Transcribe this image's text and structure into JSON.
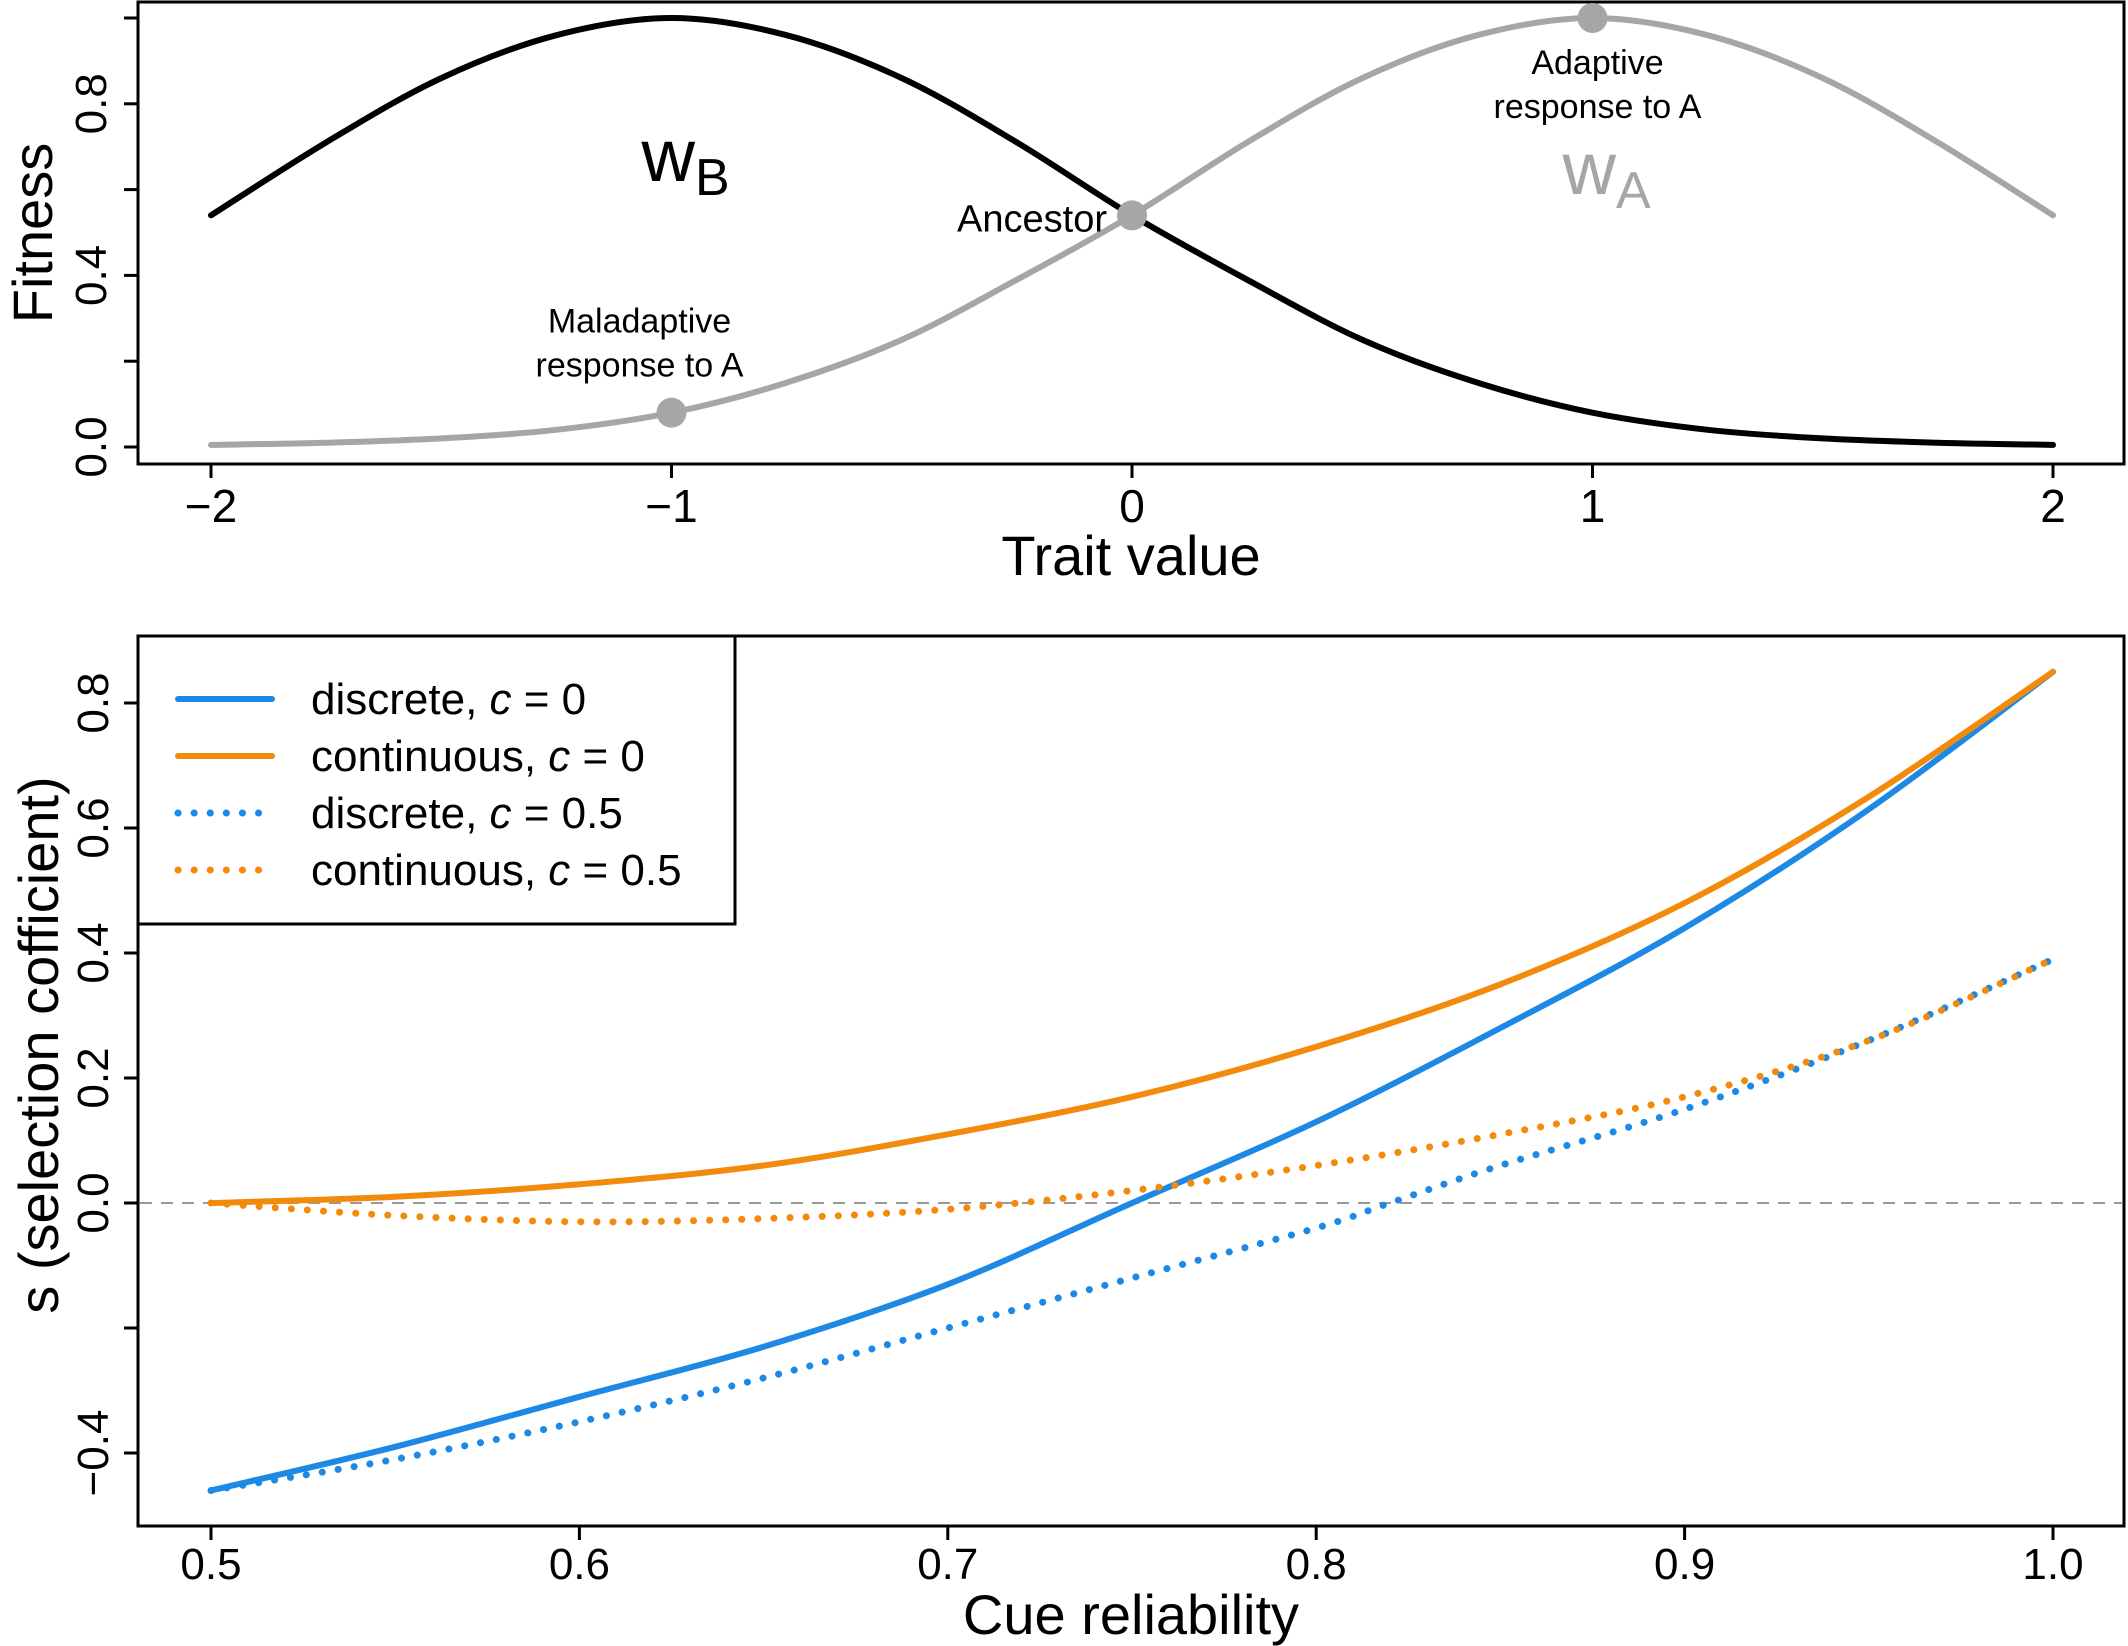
{
  "chart_data": [
    {
      "type": "line",
      "xlabel": "Trait value",
      "ylabel": "Fitness",
      "xlim": [
        -2,
        2
      ],
      "ylim": [
        0,
        1
      ],
      "xticks": [
        -2,
        -1,
        0,
        1,
        2
      ],
      "xtick_labels": [
        "−2",
        "−1",
        "0",
        "1",
        "2"
      ],
      "yticks": [
        0.0,
        0.2,
        0.4,
        0.6,
        0.8,
        1.0
      ],
      "ytick_labels": [
        "0.0",
        "",
        "0.4",
        "",
        "0.8",
        ""
      ],
      "grid": false,
      "series": [
        {
          "label_main": "w",
          "label_sub": "B",
          "color": "#000000",
          "x": [
            -2.0,
            -1.75,
            -1.5,
            -1.25,
            -1.0,
            -0.75,
            -0.5,
            -0.25,
            0.0,
            0.25,
            0.5,
            0.75,
            1.0,
            1.25,
            1.5,
            1.75,
            2.0
          ],
          "y": [
            0.54,
            0.71,
            0.86,
            0.96,
            1.0,
            0.96,
            0.86,
            0.71,
            0.54,
            0.39,
            0.25,
            0.15,
            0.08,
            0.04,
            0.02,
            0.01,
            0.005
          ]
        },
        {
          "label_main": "w",
          "label_sub": "A",
          "color": "#a6a6a6",
          "x": [
            -2.0,
            -1.75,
            -1.5,
            -1.25,
            -1.0,
            -0.75,
            -0.5,
            -0.25,
            0.0,
            0.25,
            0.5,
            0.75,
            1.0,
            1.25,
            1.5,
            1.75,
            2.0
          ],
          "y": [
            0.005,
            0.01,
            0.02,
            0.04,
            0.08,
            0.15,
            0.25,
            0.39,
            0.54,
            0.71,
            0.86,
            0.96,
            1.0,
            0.96,
            0.86,
            0.71,
            0.54
          ]
        }
      ],
      "points": [
        {
          "x": -1,
          "y": 0.08,
          "color": "#a6a6a6",
          "label": [
            "Maladaptive",
            "response to A"
          ]
        },
        {
          "x": 0,
          "y": 0.54,
          "color": "#a6a6a6",
          "label": [
            "Ancestor"
          ]
        },
        {
          "x": 1,
          "y": 1.0,
          "color": "#a6a6a6",
          "label": [
            "Adaptive",
            "response to A"
          ]
        }
      ]
    },
    {
      "type": "line",
      "xlabel": "Cue reliability",
      "ylabel": "s (selection cofficient)",
      "xlim": [
        0.5,
        1.0
      ],
      "ylim": [
        -0.5,
        0.85
      ],
      "xticks": [
        0.5,
        0.6,
        0.7,
        0.8,
        0.9,
        1.0
      ],
      "xtick_labels": [
        "0.5",
        "0.6",
        "0.7",
        "0.8",
        "0.9",
        "1.0"
      ],
      "yticks": [
        -0.4,
        -0.2,
        0.0,
        0.2,
        0.4,
        0.6,
        0.8
      ],
      "ytick_labels": [
        "−0.4",
        "",
        "0.0",
        "0.2",
        "0.4",
        "0.6",
        "0.8"
      ],
      "reference_line": {
        "y": 0,
        "style": "dashed",
        "color": "#999999"
      },
      "legend": {
        "position": "top-left"
      },
      "grid": false,
      "series": [
        {
          "name": "discrete, c = 0",
          "legend_prefix": "discrete, ",
          "legend_var": "c",
          "legend_suffix": " = 0",
          "color": "#1e88e5",
          "style": "solid",
          "x": [
            0.5,
            0.55,
            0.6,
            0.65,
            0.7,
            0.75,
            0.8,
            0.85,
            0.9,
            0.95,
            1.0
          ],
          "y": [
            -0.46,
            -0.39,
            -0.31,
            -0.23,
            -0.13,
            0.0,
            0.13,
            0.28,
            0.44,
            0.63,
            0.85
          ]
        },
        {
          "name": "continuous, c = 0",
          "legend_prefix": "continuous, ",
          "legend_var": "c",
          "legend_suffix": " = 0",
          "color": "#f28a0c",
          "style": "solid",
          "x": [
            0.5,
            0.55,
            0.6,
            0.65,
            0.7,
            0.75,
            0.8,
            0.85,
            0.9,
            0.95,
            1.0
          ],
          "y": [
            0.0,
            0.01,
            0.03,
            0.06,
            0.11,
            0.17,
            0.25,
            0.35,
            0.48,
            0.65,
            0.85
          ]
        },
        {
          "name": "discrete, c = 0.5",
          "legend_prefix": "discrete, ",
          "legend_var": "c",
          "legend_suffix": " = 0.5",
          "color": "#1e88e5",
          "style": "dotted",
          "x": [
            0.5,
            0.55,
            0.6,
            0.65,
            0.7,
            0.75,
            0.8,
            0.82,
            0.85,
            0.9,
            0.95,
            1.0
          ],
          "y": [
            -0.46,
            -0.41,
            -0.35,
            -0.28,
            -0.2,
            -0.12,
            -0.04,
            0.0,
            0.06,
            0.15,
            0.26,
            0.39
          ]
        },
        {
          "name": "continuous, c = 0.5",
          "legend_prefix": "continuous, ",
          "legend_var": "c",
          "legend_suffix": " = 0.5",
          "color": "#f28a0c",
          "style": "dotted",
          "x": [
            0.5,
            0.55,
            0.6,
            0.65,
            0.7,
            0.75,
            0.8,
            0.85,
            0.9,
            0.95,
            1.0
          ],
          "y": [
            0.0,
            -0.02,
            -0.03,
            -0.025,
            -0.01,
            0.02,
            0.06,
            0.11,
            0.17,
            0.26,
            0.39
          ]
        }
      ]
    }
  ]
}
